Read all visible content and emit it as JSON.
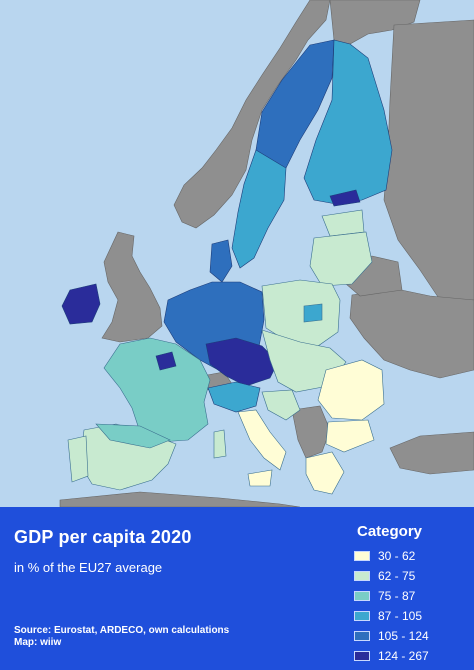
{
  "map": {
    "title": "GDP per capita 2020",
    "subtitle": "in % of the EU27 average",
    "source_lines": [
      "Source: Eurostat, ARDECO, own calculations",
      "Map: wiiw"
    ],
    "colors": {
      "sea": "#b9d6ef",
      "non_eu": "#8f8f8f",
      "panel": "#1f4fdb"
    }
  },
  "legend": {
    "title": "Category",
    "items": [
      {
        "label": "30 - 62",
        "color": "#fffdd6"
      },
      {
        "label": "62 - 75",
        "color": "#c8ead0"
      },
      {
        "label": "75 - 87",
        "color": "#79cdc6"
      },
      {
        "label": "87 - 105",
        "color": "#3ca7cf"
      },
      {
        "label": "105 - 124",
        "color": "#2e6fbd"
      },
      {
        "label": "124 - 267",
        "color": "#2a2c9a"
      }
    ]
  }
}
